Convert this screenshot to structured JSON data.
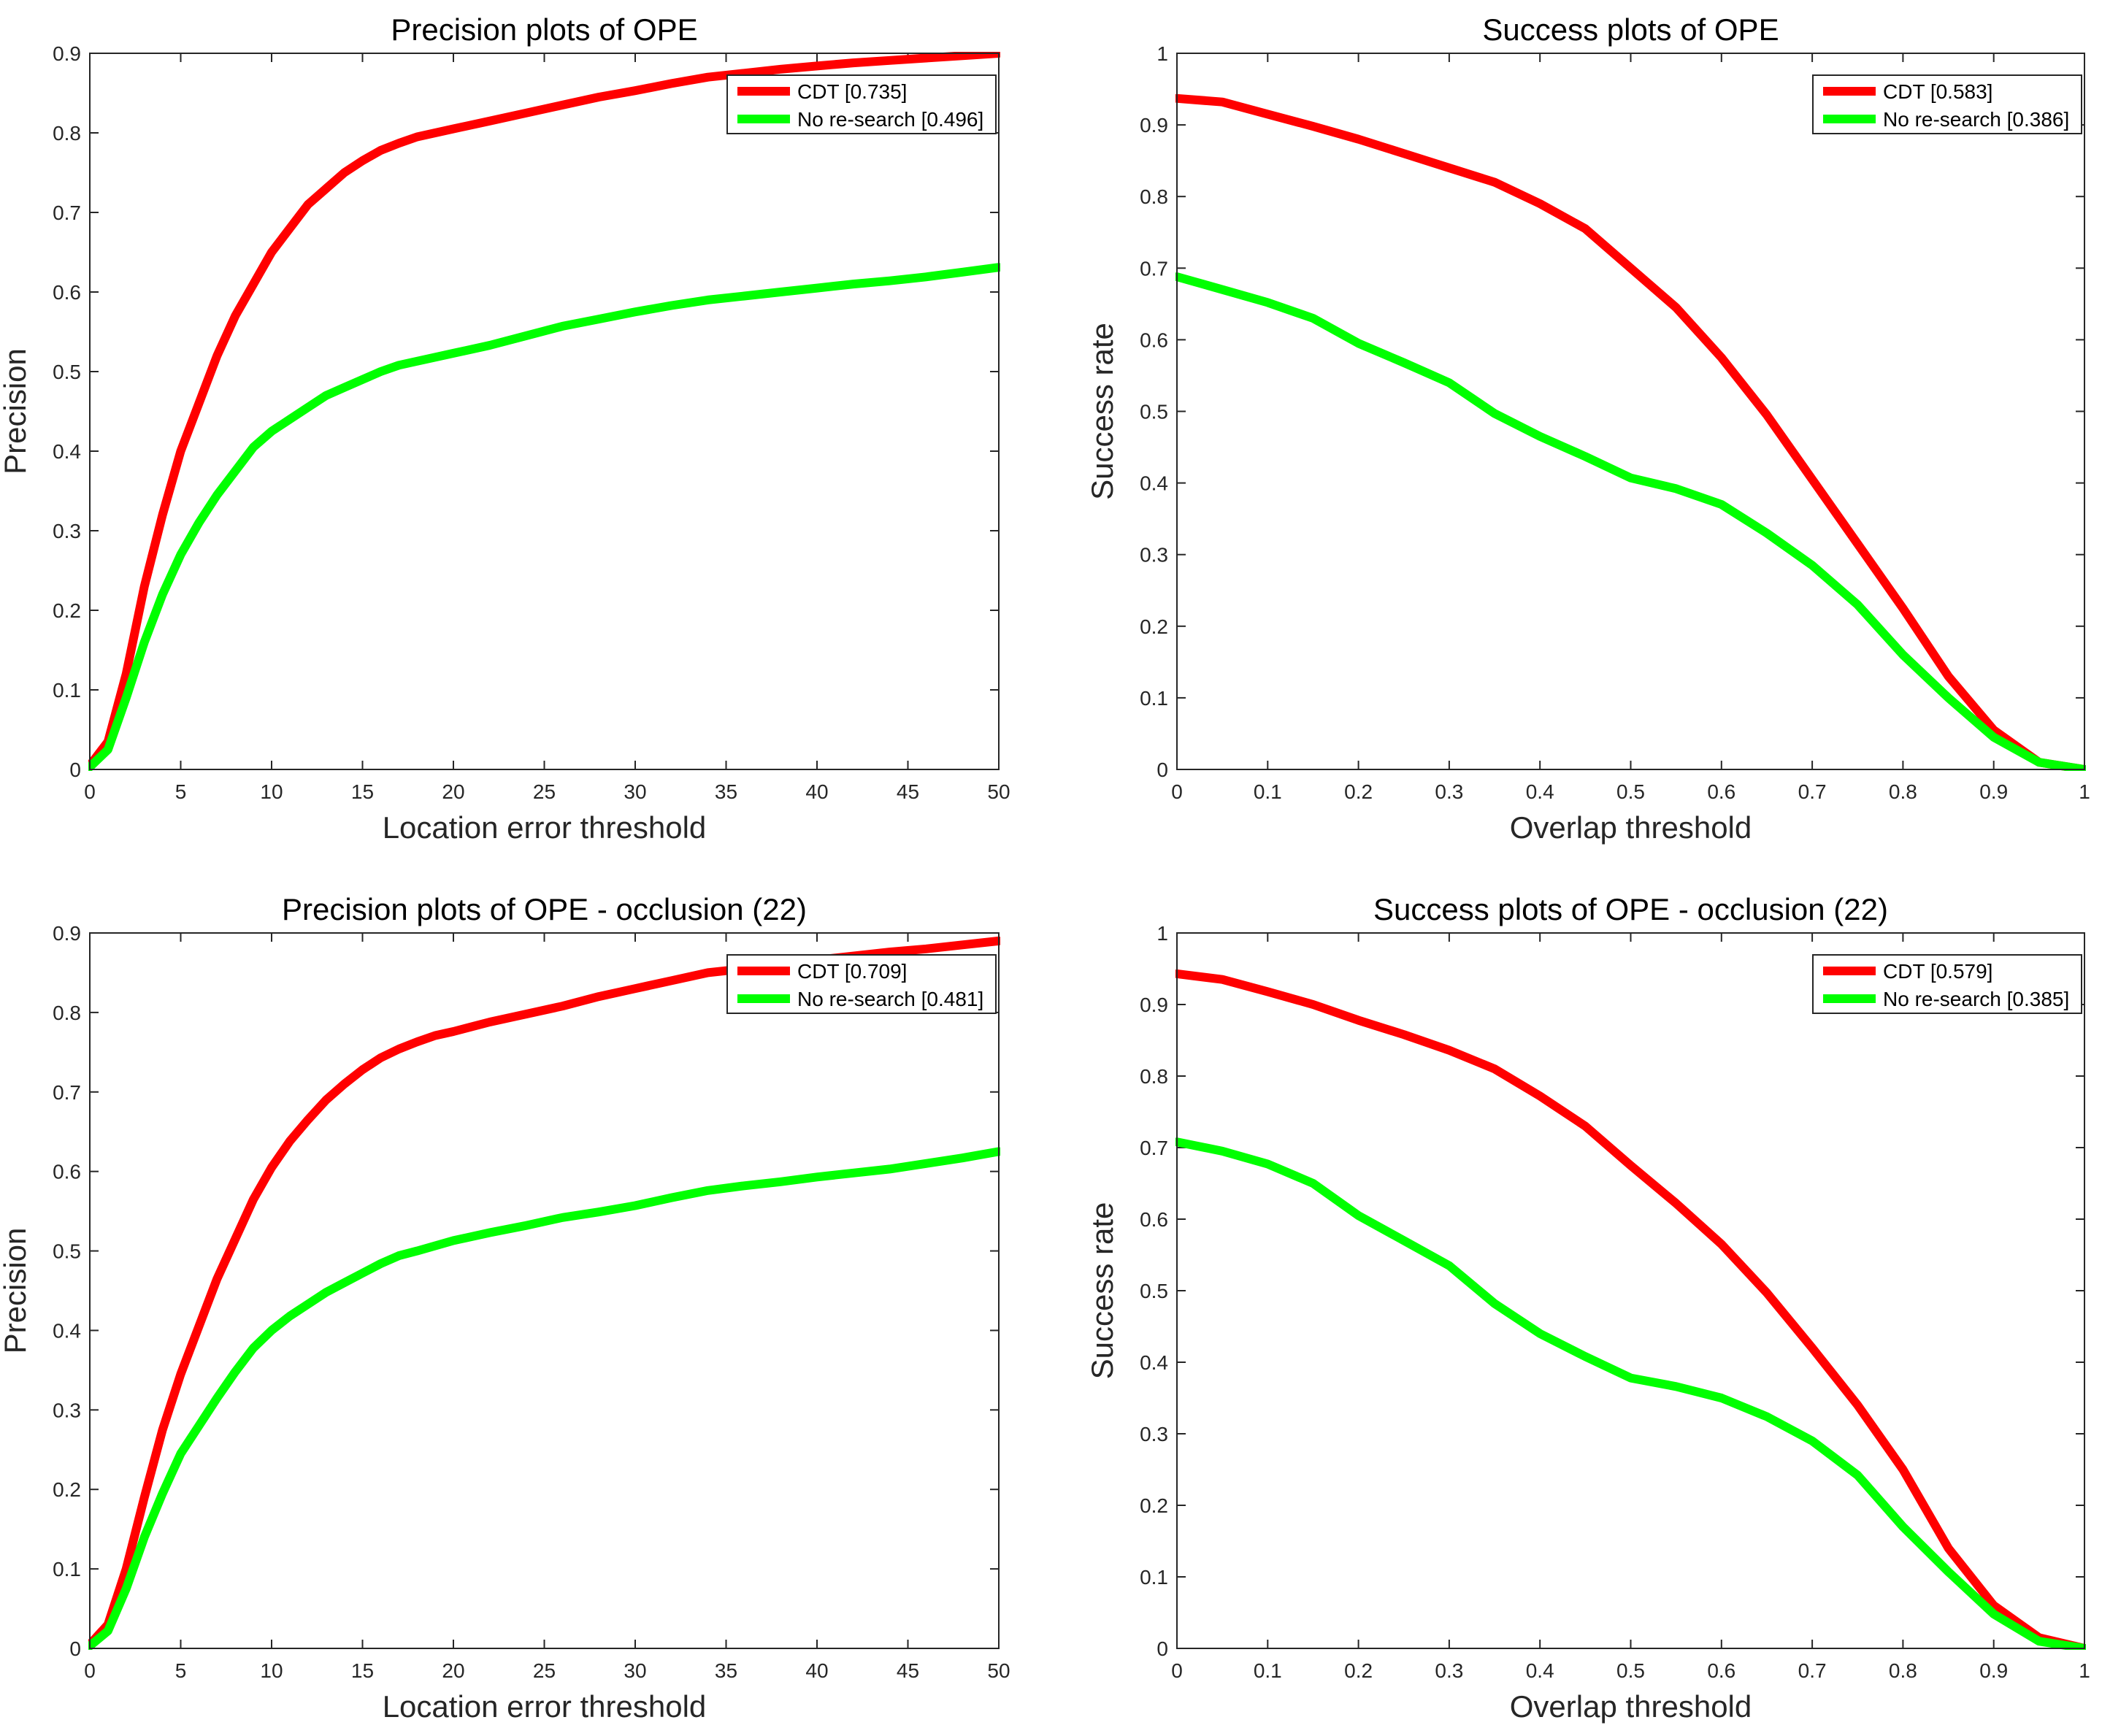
{
  "chart_data": [
    {
      "type": "line",
      "title": "Precision plots of OPE",
      "xlabel": "Location error threshold",
      "ylabel": "Precision",
      "xlim": [
        0,
        50
      ],
      "ylim": [
        0,
        0.9
      ],
      "xticks": [
        0,
        5,
        10,
        15,
        20,
        25,
        30,
        35,
        40,
        45,
        50
      ],
      "yticks": [
        0,
        0.1,
        0.2,
        0.3,
        0.4,
        0.5,
        0.6,
        0.7,
        0.8,
        0.9
      ],
      "grid": false,
      "legend_position": "top-right",
      "series": [
        {
          "name": "CDT [0.735]",
          "color": "#ff0000",
          "x": [
            0,
            1,
            2,
            3,
            4,
            5,
            6,
            7,
            8,
            9,
            10,
            11,
            12,
            13,
            14,
            15,
            16,
            17,
            18,
            19,
            20,
            22,
            24,
            26,
            28,
            30,
            32,
            34,
            36,
            38,
            40,
            42,
            44,
            46,
            48,
            50
          ],
          "y": [
            0.005,
            0.035,
            0.12,
            0.23,
            0.32,
            0.4,
            0.46,
            0.52,
            0.57,
            0.61,
            0.65,
            0.68,
            0.71,
            0.73,
            0.75,
            0.765,
            0.778,
            0.787,
            0.795,
            0.8,
            0.805,
            0.815,
            0.825,
            0.835,
            0.845,
            0.853,
            0.862,
            0.87,
            0.875,
            0.88,
            0.884,
            0.888,
            0.891,
            0.894,
            0.897,
            0.9
          ]
        },
        {
          "name": "No re-search [0.496]",
          "color": "#00ff00",
          "x": [
            0,
            1,
            2,
            3,
            4,
            5,
            6,
            7,
            8,
            9,
            10,
            11,
            12,
            13,
            14,
            15,
            16,
            17,
            18,
            20,
            22,
            24,
            26,
            28,
            30,
            32,
            34,
            36,
            38,
            40,
            42,
            44,
            46,
            48,
            50
          ],
          "y": [
            0.003,
            0.025,
            0.09,
            0.16,
            0.22,
            0.27,
            0.31,
            0.345,
            0.375,
            0.405,
            0.425,
            0.44,
            0.455,
            0.47,
            0.48,
            0.49,
            0.5,
            0.508,
            0.513,
            0.523,
            0.533,
            0.545,
            0.557,
            0.566,
            0.575,
            0.583,
            0.59,
            0.595,
            0.6,
            0.605,
            0.61,
            0.614,
            0.619,
            0.625,
            0.631
          ]
        }
      ]
    },
    {
      "type": "line",
      "title": "Success plots of OPE",
      "xlabel": "Overlap threshold",
      "ylabel": "Success rate",
      "xlim": [
        0,
        1
      ],
      "ylim": [
        0,
        1
      ],
      "xticks": [
        0,
        0.1,
        0.2,
        0.3,
        0.4,
        0.5,
        0.6,
        0.7,
        0.8,
        0.9,
        1
      ],
      "yticks": [
        0,
        0.1,
        0.2,
        0.3,
        0.4,
        0.5,
        0.6,
        0.7,
        0.8,
        0.9,
        1
      ],
      "grid": false,
      "legend_position": "top-right",
      "series": [
        {
          "name": "CDT [0.583]",
          "color": "#ff0000",
          "x": [
            0,
            0.05,
            0.1,
            0.15,
            0.2,
            0.25,
            0.3,
            0.35,
            0.4,
            0.45,
            0.5,
            0.55,
            0.6,
            0.65,
            0.7,
            0.75,
            0.8,
            0.85,
            0.9,
            0.95,
            1
          ],
          "y": [
            0.937,
            0.932,
            0.915,
            0.898,
            0.88,
            0.86,
            0.84,
            0.82,
            0.79,
            0.755,
            0.7,
            0.645,
            0.575,
            0.495,
            0.405,
            0.315,
            0.225,
            0.13,
            0.055,
            0.01,
            0
          ]
        },
        {
          "name": "No re-search [0.386]",
          "color": "#00ff00",
          "x": [
            0,
            0.05,
            0.1,
            0.15,
            0.2,
            0.25,
            0.3,
            0.35,
            0.4,
            0.45,
            0.5,
            0.55,
            0.6,
            0.65,
            0.7,
            0.75,
            0.8,
            0.85,
            0.9,
            0.95,
            1
          ],
          "y": [
            0.688,
            0.67,
            0.652,
            0.63,
            0.595,
            0.568,
            0.54,
            0.497,
            0.465,
            0.437,
            0.407,
            0.392,
            0.37,
            0.33,
            0.285,
            0.23,
            0.16,
            0.1,
            0.045,
            0.01,
            0
          ]
        }
      ]
    },
    {
      "type": "line",
      "title": "Precision plots of OPE - occlusion (22)",
      "xlabel": "Location error threshold",
      "ylabel": "Precision",
      "xlim": [
        0,
        50
      ],
      "ylim": [
        0,
        0.9
      ],
      "xticks": [
        0,
        5,
        10,
        15,
        20,
        25,
        30,
        35,
        40,
        45,
        50
      ],
      "yticks": [
        0,
        0.1,
        0.2,
        0.3,
        0.4,
        0.5,
        0.6,
        0.7,
        0.8,
        0.9
      ],
      "grid": false,
      "legend_position": "top-right",
      "series": [
        {
          "name": "CDT [0.709]",
          "color": "#ff0000",
          "x": [
            0,
            1,
            2,
            3,
            4,
            5,
            6,
            7,
            8,
            9,
            10,
            11,
            12,
            13,
            14,
            15,
            16,
            17,
            18,
            19,
            20,
            22,
            24,
            26,
            28,
            30,
            32,
            34,
            36,
            38,
            40,
            42,
            44,
            46,
            48,
            50
          ],
          "y": [
            0.005,
            0.03,
            0.1,
            0.19,
            0.275,
            0.345,
            0.405,
            0.465,
            0.515,
            0.565,
            0.605,
            0.638,
            0.665,
            0.69,
            0.71,
            0.728,
            0.743,
            0.754,
            0.763,
            0.771,
            0.776,
            0.788,
            0.798,
            0.808,
            0.82,
            0.83,
            0.84,
            0.85,
            0.855,
            0.861,
            0.866,
            0.871,
            0.876,
            0.88,
            0.885,
            0.89
          ]
        },
        {
          "name": "No re-search [0.481]",
          "color": "#00ff00",
          "x": [
            0,
            1,
            2,
            3,
            4,
            5,
            6,
            7,
            8,
            9,
            10,
            11,
            12,
            13,
            14,
            15,
            16,
            17,
            18,
            20,
            22,
            24,
            26,
            28,
            30,
            32,
            34,
            36,
            38,
            40,
            42,
            44,
            46,
            48,
            50
          ],
          "y": [
            0.003,
            0.022,
            0.075,
            0.14,
            0.195,
            0.245,
            0.28,
            0.315,
            0.348,
            0.378,
            0.4,
            0.418,
            0.433,
            0.448,
            0.46,
            0.472,
            0.484,
            0.494,
            0.5,
            0.513,
            0.523,
            0.532,
            0.542,
            0.549,
            0.557,
            0.567,
            0.576,
            0.582,
            0.587,
            0.593,
            0.598,
            0.603,
            0.61,
            0.617,
            0.625
          ]
        }
      ]
    },
    {
      "type": "line",
      "title": "Success plots of OPE - occlusion (22)",
      "xlabel": "Overlap threshold",
      "ylabel": "Success rate",
      "xlim": [
        0,
        1
      ],
      "ylim": [
        0,
        1
      ],
      "xticks": [
        0,
        0.1,
        0.2,
        0.3,
        0.4,
        0.5,
        0.6,
        0.7,
        0.8,
        0.9,
        1
      ],
      "yticks": [
        0,
        0.1,
        0.2,
        0.3,
        0.4,
        0.5,
        0.6,
        0.7,
        0.8,
        0.9,
        1
      ],
      "grid": false,
      "legend_position": "top-right",
      "series": [
        {
          "name": "CDT [0.579]",
          "color": "#ff0000",
          "x": [
            0,
            0.05,
            0.1,
            0.15,
            0.2,
            0.25,
            0.3,
            0.35,
            0.4,
            0.45,
            0.5,
            0.55,
            0.6,
            0.65,
            0.7,
            0.75,
            0.8,
            0.85,
            0.9,
            0.95,
            1
          ],
          "y": [
            0.943,
            0.935,
            0.918,
            0.9,
            0.878,
            0.858,
            0.836,
            0.81,
            0.772,
            0.73,
            0.675,
            0.622,
            0.565,
            0.497,
            0.42,
            0.34,
            0.25,
            0.14,
            0.06,
            0.015,
            0
          ]
        },
        {
          "name": "No re-search [0.385]",
          "color": "#00ff00",
          "x": [
            0,
            0.05,
            0.1,
            0.15,
            0.2,
            0.25,
            0.3,
            0.35,
            0.4,
            0.45,
            0.5,
            0.55,
            0.6,
            0.65,
            0.7,
            0.75,
            0.8,
            0.85,
            0.9,
            0.95,
            1
          ],
          "y": [
            0.708,
            0.695,
            0.677,
            0.65,
            0.605,
            0.57,
            0.535,
            0.482,
            0.44,
            0.408,
            0.378,
            0.366,
            0.35,
            0.324,
            0.29,
            0.242,
            0.17,
            0.107,
            0.048,
            0.01,
            0
          ]
        }
      ]
    }
  ]
}
